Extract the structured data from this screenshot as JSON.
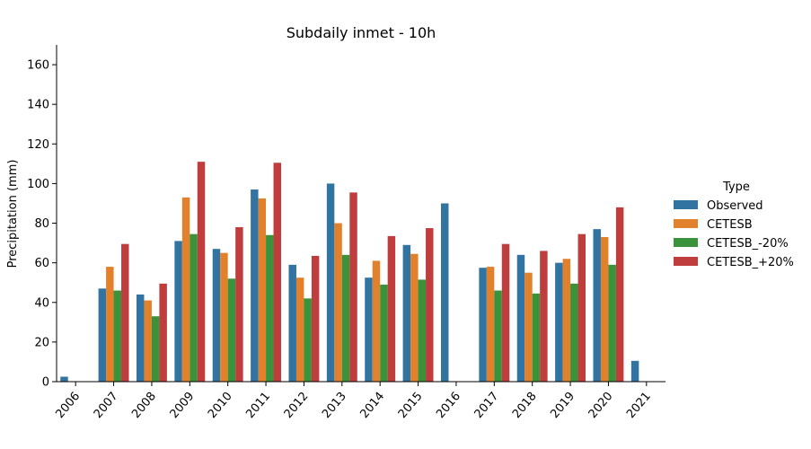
{
  "chart_data": {
    "type": "bar",
    "title": "Subdaily inmet - 10h",
    "xlabel": "",
    "ylabel": "Precipitation (mm)",
    "ylim": [
      0,
      170
    ],
    "yticks": [
      0,
      20,
      40,
      60,
      80,
      100,
      120,
      140,
      160
    ],
    "grid": false,
    "legend_title": "Type",
    "legend_position": "right",
    "categories": [
      "2006",
      "2007",
      "2008",
      "2009",
      "2010",
      "2011",
      "2012",
      "2013",
      "2014",
      "2015",
      "2016",
      "2017",
      "2018",
      "2019",
      "2020",
      "2021"
    ],
    "series": [
      {
        "name": "Observed",
        "color": "#3274a1",
        "values": [
          2.5,
          47,
          44,
          71,
          67,
          97,
          59,
          100,
          52.5,
          69,
          90,
          57.5,
          64,
          60,
          77,
          10.5
        ]
      },
      {
        "name": "CETESB",
        "color": "#e1812c",
        "values": [
          null,
          58,
          41,
          93,
          65,
          92.5,
          52.5,
          80,
          61,
          64.5,
          null,
          58,
          55,
          62,
          73,
          null
        ]
      },
      {
        "name": "CETESB_-20%",
        "color": "#3a923a",
        "values": [
          null,
          46,
          33,
          74.5,
          52,
          74,
          42,
          64,
          49,
          51.5,
          null,
          46,
          44.5,
          49.5,
          59,
          null
        ]
      },
      {
        "name": "CETESB_+20%",
        "color": "#c03d3e",
        "values": [
          null,
          69.5,
          49.5,
          111,
          78,
          110.5,
          63.5,
          95.5,
          73.5,
          77.5,
          null,
          69.5,
          66,
          74.5,
          88,
          null
        ]
      }
    ]
  }
}
